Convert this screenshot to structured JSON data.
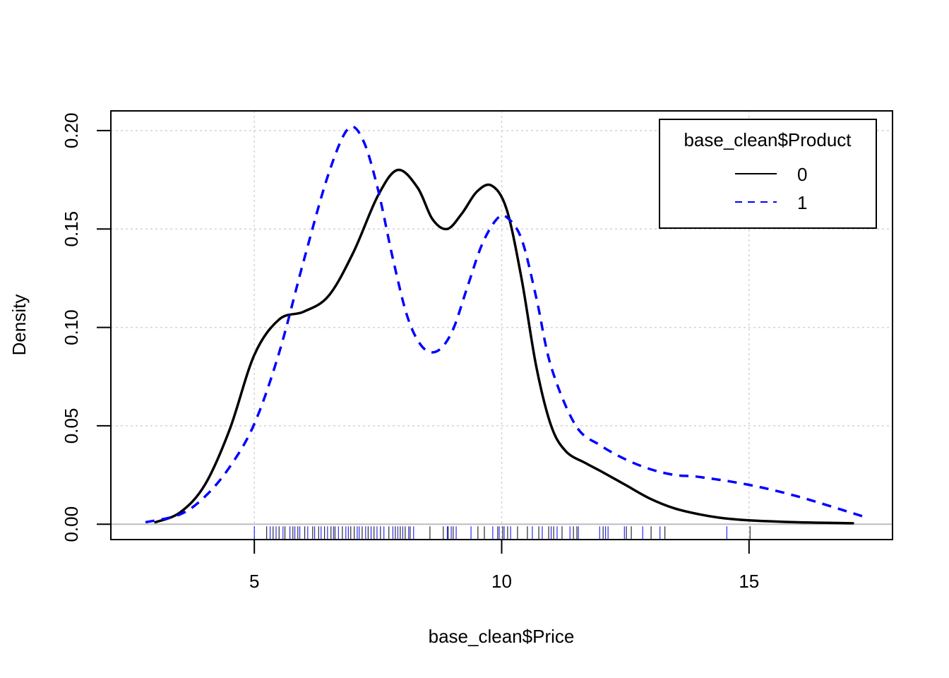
{
  "chart_data": {
    "type": "line",
    "subtype": "kernel-density",
    "xlabel": "base_clean$Price",
    "ylabel": "Density",
    "xlim": [
      2.1,
      17.9
    ],
    "ylim": [
      -0.0078,
      0.21
    ],
    "x_ticks": [
      5,
      10,
      15
    ],
    "y_ticks": [
      0.0,
      0.05,
      0.1,
      0.15,
      0.2
    ],
    "x_tick_labels": [
      "5",
      "10",
      "15"
    ],
    "y_tick_labels": [
      "0.00",
      "0.05",
      "0.10",
      "0.15",
      "0.20"
    ],
    "grid": true,
    "legend": {
      "title": "base_clean$Product",
      "position": "top-right",
      "entries": [
        "0",
        "1"
      ]
    },
    "series": [
      {
        "name": "0",
        "color": "#000000",
        "line_style": "solid",
        "x": [
          3.0,
          3.5,
          4.0,
          4.5,
          5.0,
          5.5,
          6.0,
          6.5,
          7.0,
          7.5,
          7.9,
          8.3,
          8.6,
          8.9,
          9.2,
          9.5,
          9.8,
          10.1,
          10.4,
          10.7,
          11.0,
          11.3,
          11.7,
          12.0,
          12.5,
          13.0,
          13.5,
          14.0,
          14.5,
          15.0,
          16.0,
          17.1
        ],
        "y": [
          0.001,
          0.006,
          0.02,
          0.048,
          0.086,
          0.104,
          0.108,
          0.116,
          0.138,
          0.167,
          0.18,
          0.171,
          0.155,
          0.15,
          0.158,
          0.169,
          0.172,
          0.16,
          0.125,
          0.08,
          0.05,
          0.037,
          0.031,
          0.027,
          0.02,
          0.013,
          0.008,
          0.005,
          0.003,
          0.002,
          0.001,
          0.0005
        ]
      },
      {
        "name": "1",
        "color": "#0000FF",
        "line_style": "dashed",
        "x": [
          2.8,
          3.5,
          4.0,
          4.5,
          5.0,
          5.5,
          6.0,
          6.5,
          6.9,
          7.2,
          7.5,
          7.8,
          8.1,
          8.4,
          8.7,
          9.0,
          9.3,
          9.6,
          9.9,
          10.1,
          10.4,
          10.7,
          11.0,
          11.5,
          12.0,
          12.5,
          13.0,
          13.5,
          14.0,
          15.0,
          16.0,
          17.3
        ],
        "y": [
          0.001,
          0.005,
          0.014,
          0.029,
          0.051,
          0.087,
          0.134,
          0.178,
          0.201,
          0.195,
          0.17,
          0.135,
          0.105,
          0.09,
          0.088,
          0.098,
          0.12,
          0.142,
          0.155,
          0.156,
          0.145,
          0.115,
          0.08,
          0.05,
          0.04,
          0.033,
          0.028,
          0.025,
          0.024,
          0.02,
          0.014,
          0.004
        ]
      }
    ],
    "rug": {
      "black": [
        5.25,
        5.38,
        5.5,
        5.62,
        5.78,
        5.88,
        6.02,
        6.18,
        6.3,
        6.42,
        6.55,
        6.63,
        6.78,
        6.95,
        7.02,
        7.18,
        7.3,
        7.42,
        7.55,
        7.72,
        7.85,
        7.95,
        8.05,
        8.15,
        8.55,
        8.82,
        8.92,
        9.02,
        9.52,
        9.65,
        9.92,
        10.02,
        10.12,
        10.32,
        10.52,
        10.75,
        10.95,
        11.05,
        11.22,
        11.45,
        11.52,
        12.05,
        12.52,
        12.62,
        13.02,
        13.3,
        15.02
      ],
      "blue": [
        5.0,
        5.32,
        5.44,
        5.58,
        5.72,
        5.82,
        5.92,
        6.08,
        6.22,
        6.35,
        6.48,
        6.6,
        6.7,
        6.85,
        6.9,
        7.08,
        7.12,
        7.25,
        7.36,
        7.48,
        7.62,
        7.8,
        7.9,
        8.0,
        8.12,
        8.22,
        8.9,
        8.98,
        9.08,
        9.38,
        9.82,
        9.95,
        10.05,
        10.18,
        10.62,
        10.82,
        11.0,
        11.12,
        11.38,
        11.55,
        11.98,
        12.1,
        12.15,
        12.48,
        12.85,
        13.2,
        14.55
      ]
    }
  }
}
